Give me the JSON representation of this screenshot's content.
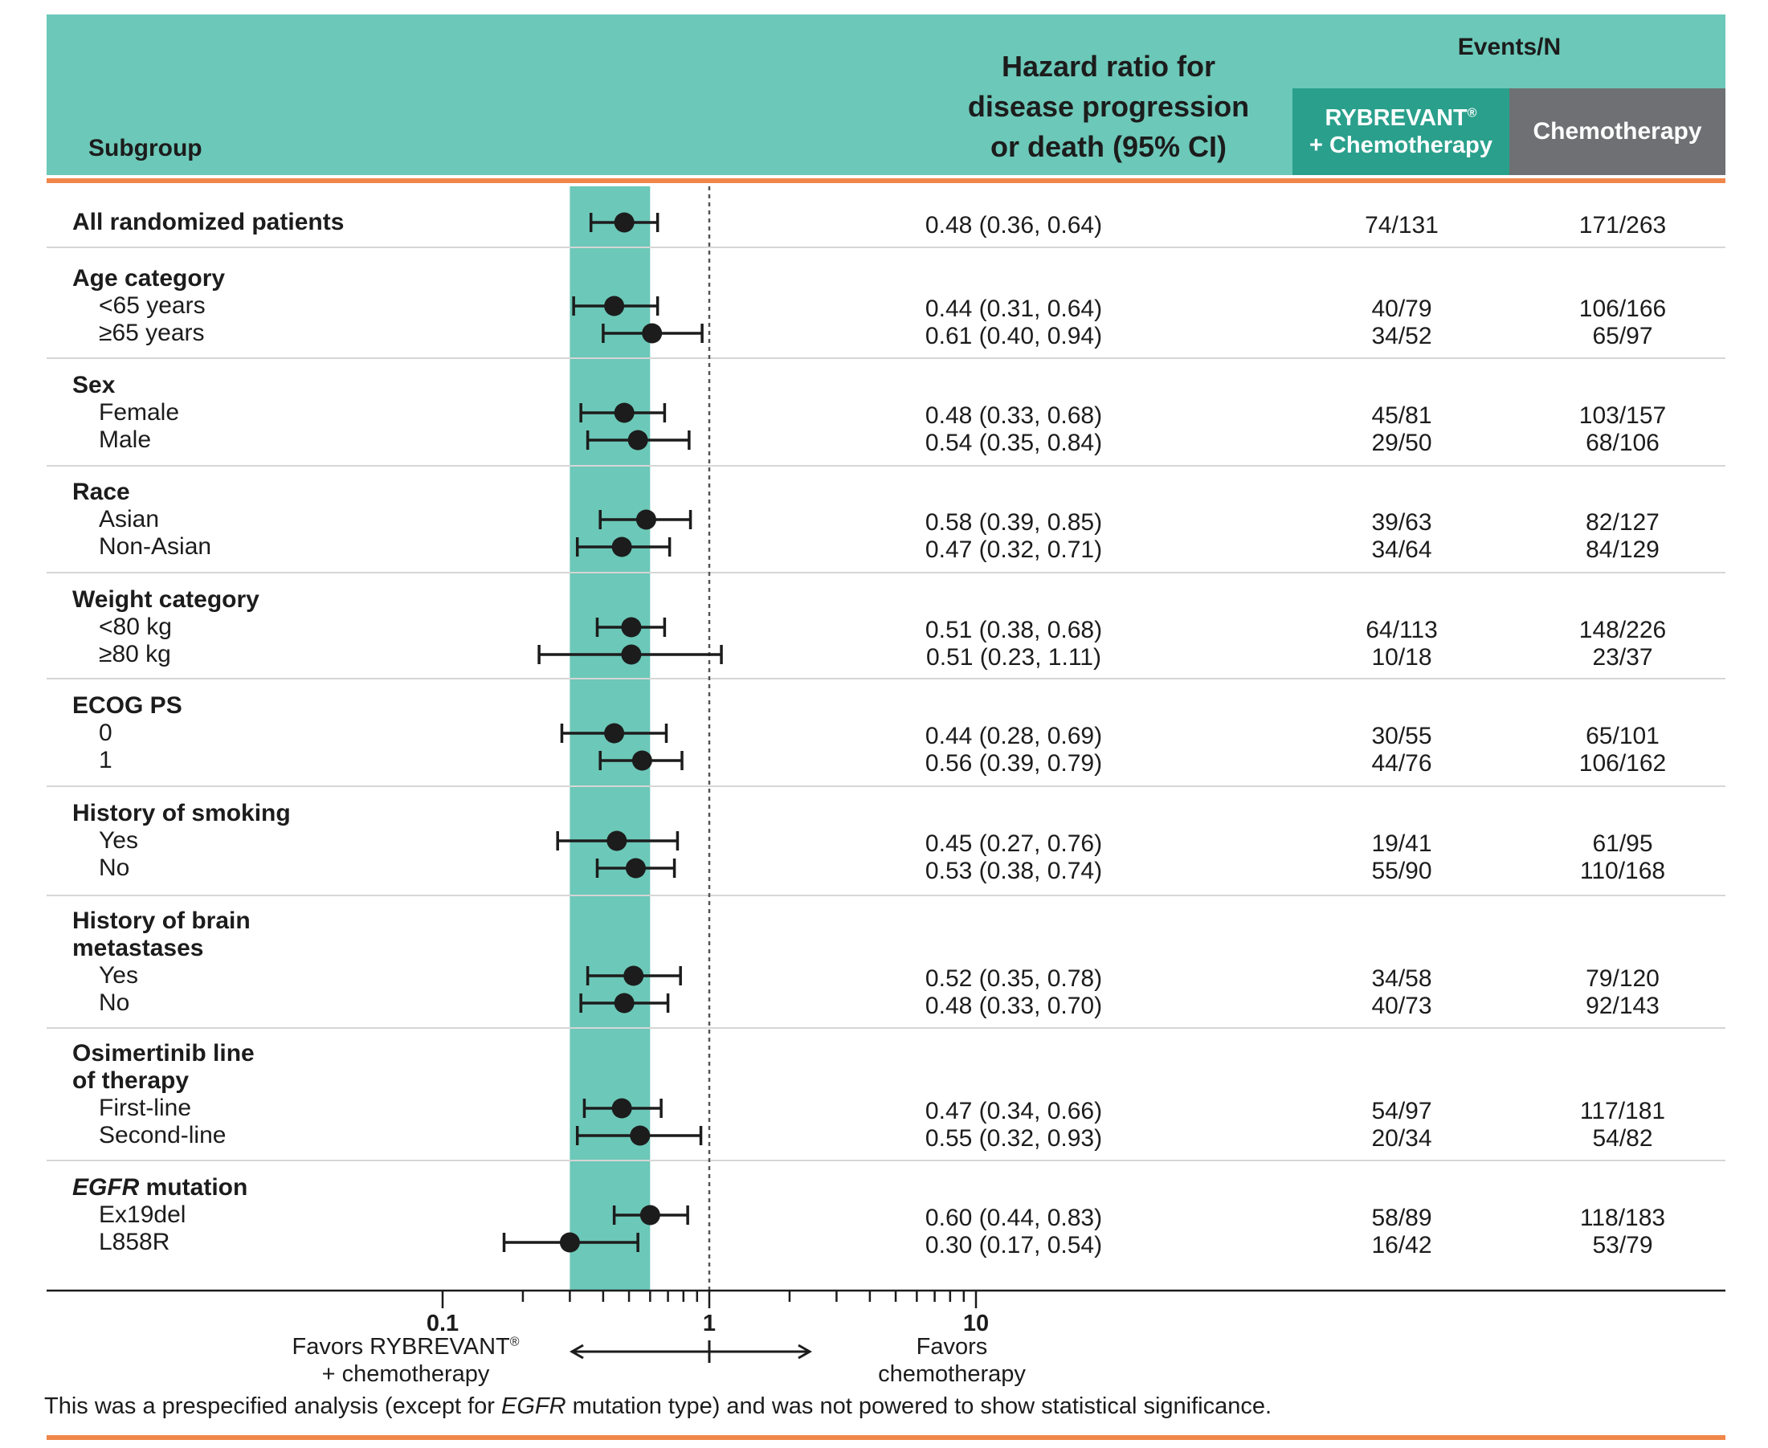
{
  "header": {
    "subgroup": "Subgroup",
    "hr_title": [
      "Hazard ratio for",
      "disease progression",
      "or death (95% CI)"
    ],
    "events_title": "Events/N",
    "col_rybrevant": [
      "RYBREVANT",
      "+ Chemotherapy"
    ],
    "col_rybrevant_mark": "®",
    "col_chemo": "Chemotherapy"
  },
  "colors": {
    "header_band": "#6cc8b8",
    "rybrevant_header": "#2aa08c",
    "chemo_header": "#6e7073",
    "orange_rule": "#f0874a",
    "highlight_band": "#6cc8b8",
    "marker": "#1c1c1c"
  },
  "chart_data": {
    "type": "forest",
    "x_scale": "log",
    "xlim": [
      0.1,
      10
    ],
    "x_ticks": [
      {
        "value": 0.1,
        "label": "0.1"
      },
      {
        "value": 1,
        "label": "1"
      },
      {
        "value": 10,
        "label": "10"
      }
    ],
    "reference_line": 1,
    "highlight_band": [
      0.3,
      0.6
    ],
    "favors_left": [
      "Favors RYBREVANT",
      "+ chemotherapy"
    ],
    "favors_left_mark": "®",
    "favors_right": [
      "Favors",
      "chemotherapy"
    ],
    "groups": [
      {
        "label": "All randomized patients",
        "rows": [
          {
            "label": "",
            "hr": 0.48,
            "lo": 0.36,
            "hi": 0.64,
            "hr_text": "0.48 (0.36, 0.64)",
            "ryb": "74/131",
            "chemo": "171/263"
          }
        ]
      },
      {
        "label": "Age category",
        "rows": [
          {
            "label": "<65 years",
            "hr": 0.44,
            "lo": 0.31,
            "hi": 0.64,
            "hr_text": "0.44 (0.31, 0.64)",
            "ryb": "40/79",
            "chemo": "106/166"
          },
          {
            "label": "≥65 years",
            "hr": 0.61,
            "lo": 0.4,
            "hi": 0.94,
            "hr_text": "0.61 (0.40, 0.94)",
            "ryb": "34/52",
            "chemo": "65/97"
          }
        ]
      },
      {
        "label": "Sex",
        "rows": [
          {
            "label": "Female",
            "hr": 0.48,
            "lo": 0.33,
            "hi": 0.68,
            "hr_text": "0.48 (0.33, 0.68)",
            "ryb": "45/81",
            "chemo": "103/157"
          },
          {
            "label": "Male",
            "hr": 0.54,
            "lo": 0.35,
            "hi": 0.84,
            "hr_text": "0.54 (0.35, 0.84)",
            "ryb": "29/50",
            "chemo": "68/106"
          }
        ]
      },
      {
        "label": "Race",
        "rows": [
          {
            "label": "Asian",
            "hr": 0.58,
            "lo": 0.39,
            "hi": 0.85,
            "hr_text": "0.58 (0.39, 0.85)",
            "ryb": "39/63",
            "chemo": "82/127"
          },
          {
            "label": "Non-Asian",
            "hr": 0.47,
            "lo": 0.32,
            "hi": 0.71,
            "hr_text": "0.47 (0.32, 0.71)",
            "ryb": "34/64",
            "chemo": "84/129"
          }
        ]
      },
      {
        "label": "Weight category",
        "rows": [
          {
            "label": "<80 kg",
            "hr": 0.51,
            "lo": 0.38,
            "hi": 0.68,
            "hr_text": "0.51 (0.38, 0.68)",
            "ryb": "64/113",
            "chemo": "148/226"
          },
          {
            "label": "≥80 kg",
            "hr": 0.51,
            "lo": 0.23,
            "hi": 1.11,
            "hr_text": "0.51 (0.23, 1.11)",
            "ryb": "10/18",
            "chemo": "23/37"
          }
        ]
      },
      {
        "label": "ECOG PS",
        "rows": [
          {
            "label": "0",
            "hr": 0.44,
            "lo": 0.28,
            "hi": 0.69,
            "hr_text": "0.44 (0.28, 0.69)",
            "ryb": "30/55",
            "chemo": "65/101"
          },
          {
            "label": "1",
            "hr": 0.56,
            "lo": 0.39,
            "hi": 0.79,
            "hr_text": "0.56 (0.39, 0.79)",
            "ryb": "44/76",
            "chemo": "106/162"
          }
        ]
      },
      {
        "label": "History of smoking",
        "rows": [
          {
            "label": "Yes",
            "hr": 0.45,
            "lo": 0.27,
            "hi": 0.76,
            "hr_text": "0.45 (0.27, 0.76)",
            "ryb": "19/41",
            "chemo": "61/95"
          },
          {
            "label": "No",
            "hr": 0.53,
            "lo": 0.38,
            "hi": 0.74,
            "hr_text": "0.53 (0.38, 0.74)",
            "ryb": "55/90",
            "chemo": "110/168"
          }
        ]
      },
      {
        "label": [
          "History of brain",
          "metastases"
        ],
        "rows": [
          {
            "label": "Yes",
            "hr": 0.52,
            "lo": 0.35,
            "hi": 0.78,
            "hr_text": "0.52 (0.35, 0.78)",
            "ryb": "34/58",
            "chemo": "79/120"
          },
          {
            "label": "No",
            "hr": 0.48,
            "lo": 0.33,
            "hi": 0.7,
            "hr_text": "0.48 (0.33, 0.70)",
            "ryb": "40/73",
            "chemo": "92/143"
          }
        ]
      },
      {
        "label": [
          "Osimertinib line",
          "of therapy"
        ],
        "rows": [
          {
            "label": "First-line",
            "hr": 0.47,
            "lo": 0.34,
            "hi": 0.66,
            "hr_text": "0.47 (0.34, 0.66)",
            "ryb": "54/97",
            "chemo": "117/181"
          },
          {
            "label": "Second-line",
            "hr": 0.55,
            "lo": 0.32,
            "hi": 0.93,
            "hr_text": "0.55 (0.32, 0.93)",
            "ryb": "20/34",
            "chemo": "54/82"
          }
        ]
      },
      {
        "label": "EGFR mutation",
        "label_italic_part": "EGFR",
        "label_rest": " mutation",
        "rows": [
          {
            "label": "Ex19del",
            "hr": 0.6,
            "lo": 0.44,
            "hi": 0.83,
            "hr_text": "0.60 (0.44, 0.83)",
            "ryb": "58/89",
            "chemo": "118/183"
          },
          {
            "label": "L858R",
            "hr": 0.3,
            "lo": 0.17,
            "hi": 0.54,
            "hr_text": "0.30 (0.17, 0.54)",
            "ryb": "16/42",
            "chemo": "53/79"
          }
        ]
      }
    ]
  },
  "footnote": {
    "before": "This was a prespecified analysis (except for ",
    "italic": "EGFR",
    "after": " mutation type) and was not powered to show statistical significance."
  }
}
